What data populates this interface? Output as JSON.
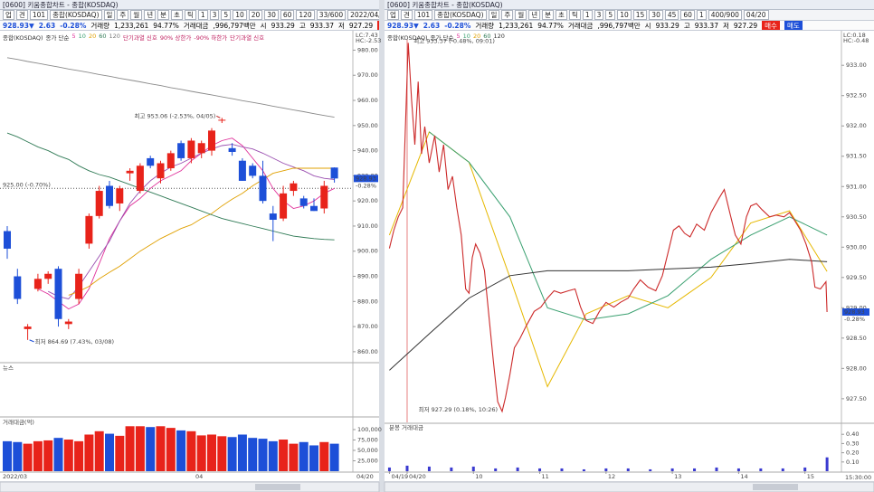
{
  "left": {
    "window_title": "[0600] 키움종합차트 - 종합(KOSDAQ)",
    "toolbar": [
      "업",
      "견",
      "101",
      "종합(KOSDAQ)",
      "일",
      "주",
      "월",
      "년",
      "분",
      "초",
      "틱",
      "1",
      "3",
      "5",
      "10",
      "20",
      "30",
      "60",
      "120",
      "33/600",
      "2022/04/2"
    ],
    "quote": [
      "928.93▼",
      "2.63",
      "-0.28%",
      "거래량",
      "1,233,261",
      "94.77%",
      "거래대금",
      ",996,797백만",
      "시",
      "933.29",
      "고",
      "933.37",
      "저",
      "927.29",
      "매수",
      "매도"
    ],
    "legend": [
      "종합(KOSDAQ)",
      "종가 단순",
      "5",
      "10",
      "20",
      "60",
      "120",
      "단기과열 신호",
      "90% 상한가",
      "-90% 하한가",
      "단기과열 신호"
    ],
    "legend_colors": [
      "#e0309a",
      "#3aa070",
      "#e0a000",
      "#2f7a55",
      "#7a7a7a"
    ],
    "price_panel": {
      "type": "candlestick",
      "up_color": "#e8231a",
      "down_color": "#1d4fd8",
      "ylim": [
        856,
        987
      ],
      "yticks": [
        {
          "value": 980,
          "label": "980.00"
        },
        {
          "value": 970,
          "label": "970.00"
        },
        {
          "value": 960,
          "label": "960.00"
        },
        {
          "value": 950,
          "label": "950.00"
        },
        {
          "value": 940,
          "label": "940.00"
        },
        {
          "value": 930,
          "label": "930.00"
        },
        {
          "value": 920,
          "label": "920.00"
        },
        {
          "value": 910,
          "label": "910.00"
        },
        {
          "value": 900,
          "label": "900.00"
        },
        {
          "value": 890,
          "label": "890.00"
        },
        {
          "value": 880,
          "label": "880.00"
        },
        {
          "value": 870,
          "label": "870.00"
        },
        {
          "value": 860,
          "label": "860.00"
        }
      ],
      "candles": [
        {
          "open": 908,
          "high": 910,
          "low": 897,
          "close": 901
        },
        {
          "open": 890,
          "high": 893,
          "low": 879,
          "close": 881
        },
        {
          "open": 869,
          "high": 871,
          "low": 864.69,
          "close": 870
        },
        {
          "open": 885,
          "high": 891,
          "low": 884,
          "close": 889
        },
        {
          "open": 889,
          "high": 892,
          "low": 887,
          "close": 891
        },
        {
          "open": 893,
          "high": 894,
          "low": 870,
          "close": 873
        },
        {
          "open": 871,
          "high": 873,
          "low": 869,
          "close": 872
        },
        {
          "open": 881,
          "high": 893,
          "low": 879,
          "close": 891
        },
        {
          "open": 903,
          "high": 915,
          "low": 901,
          "close": 914
        },
        {
          "open": 914,
          "high": 926,
          "low": 913,
          "close": 924
        },
        {
          "open": 926,
          "high": 928,
          "low": 917,
          "close": 918
        },
        {
          "open": 919,
          "high": 926,
          "low": 916,
          "close": 925
        },
        {
          "open": 931,
          "high": 933,
          "low": 928,
          "close": 932
        },
        {
          "open": 924,
          "high": 935,
          "low": 923,
          "close": 934
        },
        {
          "open": 937,
          "high": 938,
          "low": 933,
          "close": 934
        },
        {
          "open": 929,
          "high": 936,
          "low": 927,
          "close": 935
        },
        {
          "open": 933,
          "high": 940,
          "low": 932,
          "close": 939
        },
        {
          "open": 943,
          "high": 944,
          "low": 936,
          "close": 937
        },
        {
          "open": 937,
          "high": 945,
          "low": 935,
          "close": 944
        },
        {
          "open": 939,
          "high": 944,
          "low": 937,
          "close": 943
        },
        {
          "open": 940,
          "high": 949,
          "low": 938,
          "close": 948
        },
        {
          "open": 952,
          "high": 953.06,
          "low": 951,
          "close": 952.3
        },
        {
          "open": 941,
          "high": 943,
          "low": 938,
          "close": 939.5
        },
        {
          "open": 936,
          "high": 937,
          "low": 928,
          "close": 928
        },
        {
          "open": 934,
          "high": 935,
          "low": 929,
          "close": 930
        },
        {
          "open": 930,
          "high": 936,
          "low": 919,
          "close": 920
        },
        {
          "open": 915,
          "high": 918,
          "low": 904,
          "close": 912.5
        },
        {
          "open": 913,
          "high": 926,
          "low": 912,
          "close": 923
        },
        {
          "open": 924,
          "high": 928,
          "low": 922,
          "close": 927
        },
        {
          "open": 921,
          "high": 922,
          "low": 917,
          "close": 918
        },
        {
          "open": 918,
          "high": 921,
          "low": 916,
          "close": 916
        },
        {
          "open": 917,
          "high": 928,
          "low": 915,
          "close": 926
        },
        {
          "open": 933.29,
          "high": 933.37,
          "low": 927.29,
          "close": 928.93
        }
      ],
      "ma": [
        {
          "color": "#e0309a",
          "values": [
            null,
            null,
            null,
            885,
            883,
            880,
            877,
            879,
            885,
            895,
            905,
            912,
            918,
            921,
            925,
            928,
            930,
            932,
            936,
            939,
            942,
            944,
            945,
            942,
            937,
            932,
            925,
            920,
            917,
            918,
            920,
            923,
            925
          ]
        },
        {
          "color": "#9a4fb0",
          "values": [
            null,
            null,
            null,
            null,
            884,
            882,
            881,
            886,
            892,
            898,
            904,
            912,
            919,
            924,
            928,
            931,
            933.5,
            935,
            937,
            939,
            940.7,
            942,
            942.5,
            941.5,
            940.7,
            939,
            937,
            935,
            933.5,
            932,
            930,
            929,
            928.5
          ]
        },
        {
          "color": "#e0a000",
          "values": [
            null,
            null,
            null,
            null,
            null,
            null,
            882.5,
            884,
            886,
            889,
            891.6,
            894,
            897,
            900,
            902.5,
            905,
            907,
            909,
            910.5,
            913,
            915,
            918,
            920.7,
            923,
            926,
            928.5,
            931,
            932,
            933,
            933,
            933,
            933,
            933
          ]
        },
        {
          "color": "#2f7a55",
          "values": [
            947,
            945.5,
            943.5,
            941.5,
            940,
            938,
            936.5,
            934,
            932,
            930.5,
            929.5,
            928,
            926.5,
            925,
            923.5,
            922,
            920.5,
            919,
            917.5,
            916,
            914.5,
            913,
            912,
            911,
            910,
            909,
            908,
            907,
            906,
            905.5,
            905,
            904.7,
            904.5
          ]
        },
        {
          "color": "#8a8a8a",
          "values": [
            977,
            976.3,
            975.5,
            974.8,
            974,
            973.3,
            972.5,
            971.8,
            971.1,
            970.3,
            969.6,
            968.8,
            968.1,
            967.4,
            966.6,
            965.9,
            965.1,
            964.4,
            963.6,
            962.9,
            962.2,
            961.4,
            960.7,
            959.9,
            959.2,
            958.5,
            957.7,
            957,
            956.2,
            955.5,
            954.7,
            954,
            953.3
          ]
        }
      ],
      "high_label": "최고 953.06 (-2.53%, 04/05)",
      "low_label": "최저 864.69 (7.43%, 03/08)",
      "ref_line": {
        "value": 925,
        "label": "925.00 (-0.70%)"
      },
      "last": {
        "value": 928.93,
        "label": "928.93"
      },
      "last_change": "-0.28%",
      "lc": "LC:7.43",
      "hc": "HC:-2.53"
    },
    "news_label": "뉴스",
    "volume_panel": {
      "type": "bar",
      "label": "거래대금(억)",
      "ylim": [
        0,
        126000
      ],
      "yticks": [
        {
          "value": 100000,
          "label": "100,000"
        },
        {
          "value": 75000,
          "label": "75,000"
        },
        {
          "value": 50000,
          "label": "50,000"
        },
        {
          "value": 25000,
          "label": "25,000"
        }
      ],
      "values": [
        72000,
        70000,
        66000,
        72000,
        74000,
        80000,
        76000,
        72000,
        88000,
        96000,
        90000,
        85000,
        108000,
        108000,
        106000,
        108000,
        104000,
        98000,
        96000,
        86000,
        88000,
        84000,
        82000,
        88000,
        80000,
        78000,
        72000,
        76000,
        66000,
        70000,
        62000,
        70000,
        66000
      ]
    },
    "x_labels": [
      "2022/03",
      "04",
      "04/20"
    ]
  },
  "right": {
    "window_title": "[0600] 키움종합차트 - 종합(KOSDAQ)",
    "toolbar": [
      "업",
      "견",
      "101",
      "종합(KOSDAQ)",
      "일",
      "주",
      "월",
      "년",
      "분",
      "초",
      "틱",
      "1",
      "3",
      "5",
      "10",
      "15",
      "30",
      "45",
      "60",
      "1",
      "400/900",
      "04/20"
    ],
    "quote": [
      "928.93▼",
      "2.63",
      "-0.28%",
      "거래량",
      "1,233,261",
      "94.77%",
      "거래대금",
      ",996,797백만",
      "시",
      "933.29",
      "고",
      "933.37",
      "저",
      "927.29",
      "매수",
      "매도"
    ],
    "legend": [
      "종합(KOSDAQ)",
      "종가 단순",
      "5",
      "10",
      "20",
      "60",
      "120"
    ],
    "legend_colors": [
      "#e0309a",
      "#3aa070",
      "#e0a000",
      "#2f7a55",
      "#333333"
    ],
    "price_panel": {
      "type": "line",
      "color": "#cc2a2a",
      "xlim": [
        -18,
        393
      ],
      "xticks": [
        {
          "value": -16,
          "label": "04/19"
        },
        {
          "value": 0,
          "label": "04/20"
        },
        {
          "value": 60,
          "label": "10"
        },
        {
          "value": 120,
          "label": "11"
        },
        {
          "value": 180,
          "label": "12"
        },
        {
          "value": 240,
          "label": "13"
        },
        {
          "value": 300,
          "label": "14"
        },
        {
          "value": 360,
          "label": "15"
        }
      ],
      "ylim": [
        927.11,
        933.54
      ],
      "yticks": [
        {
          "value": 933,
          "label": "933.00"
        },
        {
          "value": 932.5,
          "label": "932.50"
        },
        {
          "value": 932,
          "label": "932.00"
        },
        {
          "value": 931.5,
          "label": "931.50"
        },
        {
          "value": 931,
          "label": "931.00"
        },
        {
          "value": 930.5,
          "label": "930.50"
        },
        {
          "value": 930,
          "label": "930.00"
        },
        {
          "value": 929.5,
          "label": "929.50"
        },
        {
          "value": 929,
          "label": "929.00"
        },
        {
          "value": 928.5,
          "label": "928.50"
        },
        {
          "value": 928,
          "label": "928.00"
        },
        {
          "value": 927.5,
          "label": "927.50"
        }
      ],
      "x": [
        -16,
        -12,
        -8,
        -4,
        1,
        4,
        7,
        10,
        13,
        16,
        20,
        25,
        29,
        33,
        37,
        41,
        45,
        49,
        53,
        56,
        59,
        62,
        66,
        70,
        74,
        78,
        82,
        86,
        89,
        93,
        97,
        102,
        108,
        115,
        121,
        127,
        133,
        139,
        146,
        152,
        157,
        162,
        168,
        174,
        180,
        187,
        193,
        200,
        205,
        211,
        218,
        225,
        231,
        236,
        241,
        246,
        251,
        256,
        262,
        269,
        275,
        282,
        287,
        292,
        297,
        302,
        307,
        311,
        316,
        321,
        328,
        334,
        341,
        346,
        351,
        356,
        361,
        366,
        369,
        374,
        379,
        380
      ],
      "values": [
        929.98,
        930.28,
        930.5,
        930.65,
        933.37,
        932.43,
        931.69,
        932.73,
        931.54,
        931.99,
        931.39,
        931.84,
        931.24,
        931.69,
        930.95,
        931.17,
        930.65,
        930.2,
        929.31,
        929.24,
        929.83,
        930.05,
        929.9,
        929.61,
        928.86,
        928.12,
        927.45,
        927.29,
        927.52,
        927.9,
        928.34,
        928.49,
        928.71,
        928.94,
        929.01,
        929.16,
        929.28,
        929.24,
        929.28,
        929.31,
        929.01,
        928.79,
        928.74,
        928.94,
        929.09,
        929.01,
        929.09,
        929.16,
        929.31,
        929.46,
        929.34,
        929.28,
        929.53,
        929.9,
        930.28,
        930.35,
        930.23,
        930.17,
        930.38,
        930.28,
        930.57,
        930.8,
        930.95,
        930.57,
        930.2,
        930.05,
        930.5,
        930.68,
        930.72,
        930.62,
        930.5,
        930.53,
        930.5,
        930.57,
        930.43,
        930.28,
        930.05,
        929.76,
        929.34,
        929.31,
        929.43,
        928.93
      ],
      "ma_x": [
        -16,
        20,
        56,
        93,
        127,
        162,
        200,
        236,
        275,
        311,
        346,
        380
      ],
      "ma": [
        {
          "color": "#e6b800",
          "values": [
            930.2,
            931.9,
            931.4,
            929.5,
            927.7,
            928.9,
            929.2,
            929.0,
            929.5,
            930.4,
            930.6,
            929.6
          ]
        },
        {
          "color": "#3aa070",
          "values": [
            null,
            931.9,
            931.4,
            930.5,
            929.0,
            928.8,
            928.9,
            929.2,
            929.8,
            930.2,
            930.5,
            930.2
          ]
        },
        {
          "color": "#333333",
          "values": [
            927.97,
            928.57,
            929.16,
            929.53,
            929.61,
            929.61,
            929.61,
            929.64,
            929.67,
            929.73,
            929.8,
            929.76
          ]
        }
      ],
      "high_label": "최고 933.37 (-0.48%, 09:01)",
      "low_label": "최저 927.29 (0.18%, 10:26)",
      "last": {
        "value": 928.93,
        "label": "928.93"
      },
      "last_change": "-0.28%",
      "lc": "LC:0.18",
      "hc": "HC:-0.48",
      "end_time": "15:30:00"
    },
    "volume_panel": {
      "type": "bar",
      "label": "분봉 거래대금",
      "color": "#3a3ad0",
      "ylim": [
        0,
        0.5
      ],
      "yticks": [
        {
          "value": 0.4,
          "label": "0.40"
        },
        {
          "value": 0.3,
          "label": "0.30"
        },
        {
          "value": 0.2,
          "label": "0.20"
        },
        {
          "value": 0.1,
          "label": "0.10"
        }
      ],
      "x": [
        -16,
        0,
        20,
        40,
        60,
        80,
        100,
        120,
        140,
        160,
        180,
        200,
        220,
        240,
        260,
        280,
        300,
        320,
        340,
        360,
        380
      ],
      "values": [
        0.04,
        0.06,
        0.05,
        0.04,
        0.05,
        0.03,
        0.04,
        0.03,
        0.03,
        0.02,
        0.03,
        0.03,
        0.02,
        0.03,
        0.03,
        0.04,
        0.03,
        0.03,
        0.03,
        0.04,
        0.15
      ]
    }
  }
}
